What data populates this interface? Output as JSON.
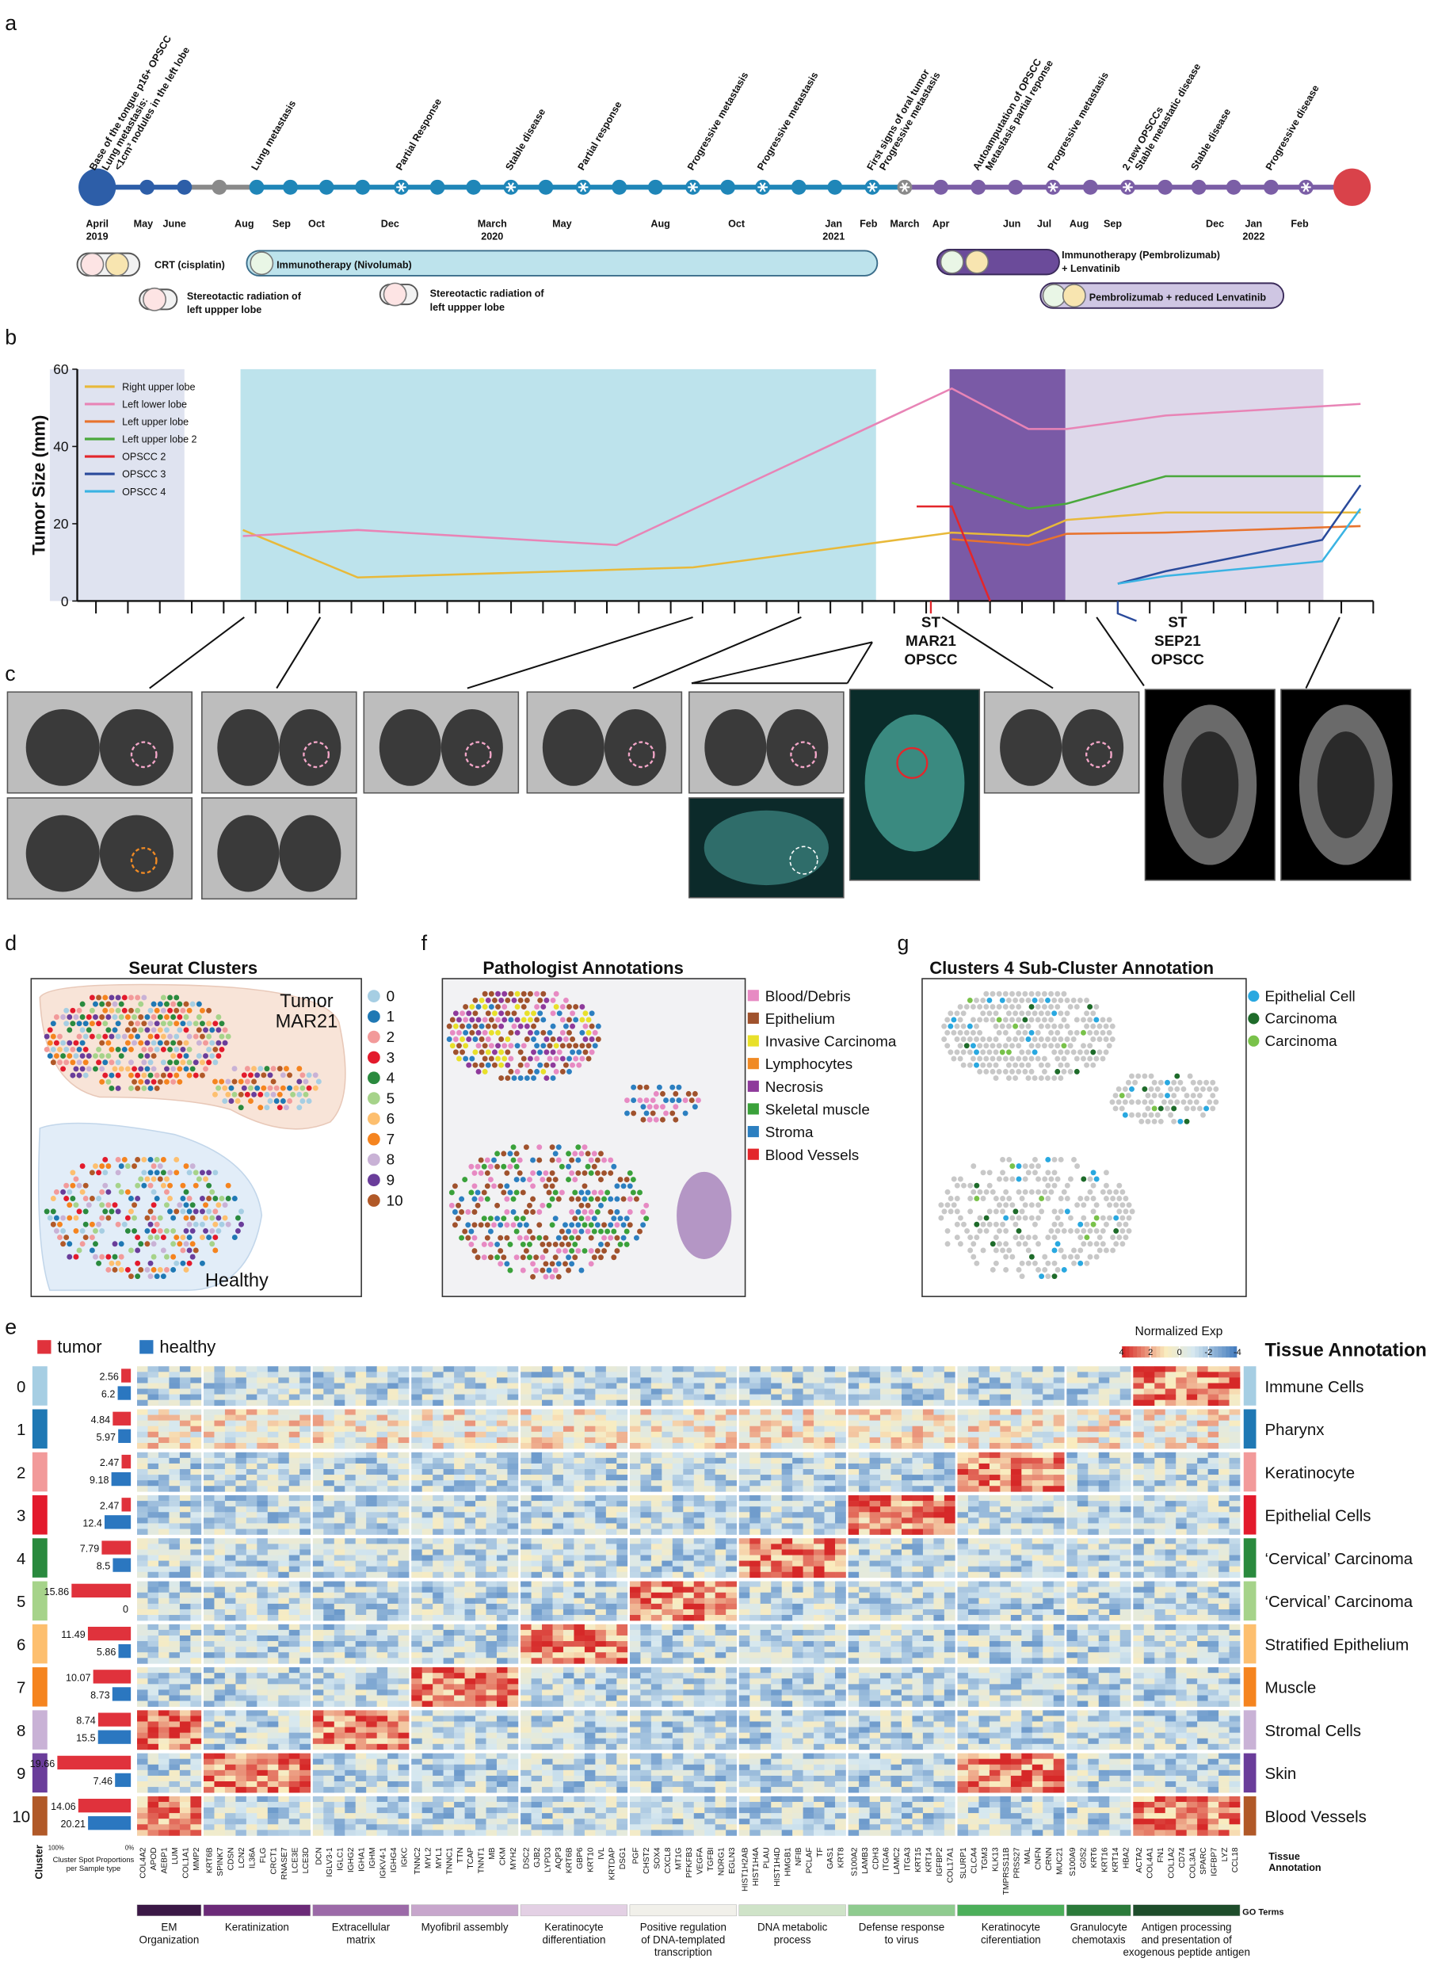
{
  "panel_labels": [
    "a",
    "b",
    "c",
    "d",
    "e",
    "f",
    "g"
  ],
  "timeline": {
    "events": [
      [
        "Base of the tongue p16+ OPSCC",
        "Lung metastasis:",
        "<1cm³ nodules in the left lobe"
      ],
      [
        "Lung metastasis"
      ],
      [
        "Partial Response"
      ],
      [
        "Stable disease"
      ],
      [
        "Partial response"
      ],
      [
        "Progressive metastasis"
      ],
      [
        "Progressive metastasis"
      ],
      [
        "First signs of oral tumor",
        "Progressive metastasis"
      ],
      [
        "Autoamputation of OPSCC",
        "Metastasis partial reponse"
      ],
      [
        "Progressive metastasis"
      ],
      [
        "2 new OPSCCs",
        "Stable metastatic disease"
      ],
      [
        "Stable disease"
      ],
      [
        "Progressive disease"
      ]
    ],
    "dates": [
      [
        "April",
        "2019"
      ],
      [
        "May"
      ],
      [
        "June"
      ],
      [
        "Aug"
      ],
      [
        "Sep"
      ],
      [
        "Oct"
      ],
      [
        "Dec"
      ],
      [
        "March",
        "2020"
      ],
      [
        "May"
      ],
      [
        "Aug"
      ],
      [
        "Oct"
      ],
      [
        "Jan",
        "2021"
      ],
      [
        "Feb"
      ],
      [
        "March"
      ],
      [
        "Apr"
      ],
      [
        "Jun"
      ],
      [
        "Jul"
      ],
      [
        "Aug"
      ],
      [
        "Sep"
      ],
      [
        "Dec"
      ],
      [
        "Jan",
        "2022"
      ],
      [
        "Feb"
      ]
    ],
    "treatments": {
      "crt": [
        "CRT (cisplatin)"
      ],
      "nivolumab": [
        "Immunotherapy (Nivolumab)"
      ],
      "radiation1": [
        "Stereotactic radiation of",
        "left uppper lobe"
      ],
      "radiation2": [
        "Stereotactic radiation of",
        "left uppper lobe"
      ],
      "pembro": [
        "Immunotherapy (Pembrolizumab)",
        "+ Lenvatinib"
      ],
      "pembro_reduced": [
        "Pembrolizumab + reduced Lenvatinib"
      ]
    }
  },
  "chart_data": {
    "type": "line",
    "y_label": "Tumor Size (mm)",
    "ylim": [
      0,
      60
    ],
    "yticks": [
      0,
      20,
      40,
      60
    ],
    "xlim": [
      0,
      40
    ],
    "xticks": [
      0,
      1,
      2,
      3,
      4,
      5,
      6,
      7,
      8,
      9,
      10,
      11,
      12,
      13,
      14,
      15,
      16,
      17,
      18,
      19,
      20,
      21,
      22,
      23,
      24,
      25,
      26,
      27,
      28,
      29,
      30,
      31,
      32,
      33,
      34,
      35,
      36,
      37,
      38,
      39,
      40
    ],
    "series": [
      {
        "name": "Right upper lobe",
        "color": "#e8b93a",
        "x": [
          4.6,
          8.2,
          18.7,
          26.8,
          29.2,
          30.4,
          33.5,
          39.6
        ],
        "values": [
          18.4,
          6.1,
          8.7,
          17.7,
          16.8,
          21,
          22.9,
          22.9
        ]
      },
      {
        "name": "Left lower lobe",
        "color": "#e884b6",
        "x": [
          4.6,
          8.2,
          16.3,
          26.8,
          29.2,
          30.4,
          33.5,
          39.6
        ],
        "values": [
          16.8,
          18.4,
          14.5,
          55,
          44.5,
          44.5,
          48,
          51
        ]
      },
      {
        "name": "Left upper lobe",
        "color": "#e8732e",
        "x": [
          26.8,
          29.2,
          30.4,
          33.5,
          39.6
        ],
        "values": [
          16,
          14.5,
          17.4,
          17.7,
          19.4
        ]
      },
      {
        "name": "Left upper lobe 2",
        "color": "#4aa83c",
        "x": [
          26.8,
          29.2,
          30.4,
          33.5,
          39.6
        ],
        "values": [
          30.6,
          23.9,
          25.2,
          32.3,
          32.3
        ]
      },
      {
        "name": "OPSCC 2",
        "color": "#e3262b",
        "x": [
          25.7,
          26.8,
          28
        ],
        "values": [
          24.5,
          24.5,
          0
        ]
      },
      {
        "name": "OPSCC 3",
        "color": "#2a4a9b",
        "x": [
          32,
          33.5,
          38.4,
          39.6
        ],
        "values": [
          4.5,
          7.7,
          15.8,
          30
        ]
      },
      {
        "name": "OPSCC 4",
        "color": "#3ab3e3",
        "x": [
          32,
          33.5,
          38.4,
          39.6
        ],
        "values": [
          4.5,
          6.5,
          10.3,
          23.9
        ]
      }
    ],
    "annotations": [
      [
        "ST",
        "MAR21",
        "OPSCC"
      ],
      [
        "ST",
        "SEP21",
        "OPSCC"
      ]
    ]
  },
  "spatial": {
    "d": {
      "title": "Seurat Clusters",
      "regions": [
        [
          "Tumor",
          "MAR21"
        ],
        [
          "Healthy"
        ]
      ],
      "legend": [
        {
          "label": "0",
          "color": "#a6cee3"
        },
        {
          "label": "1",
          "color": "#1f78b4"
        },
        {
          "label": "2",
          "color": "#f29a9a"
        },
        {
          "label": "3",
          "color": "#e31a2c"
        },
        {
          "label": "4",
          "color": "#2a8a3e"
        },
        {
          "label": "5",
          "color": "#a6d38a"
        },
        {
          "label": "6",
          "color": "#fdbf6f"
        },
        {
          "label": "7",
          "color": "#f5841f"
        },
        {
          "label": "8",
          "color": "#c9b2d6"
        },
        {
          "label": "9",
          "color": "#6a3d9a"
        },
        {
          "label": "10",
          "color": "#b15928"
        }
      ]
    },
    "f": {
      "title": "Pathologist Annotations",
      "legend": [
        {
          "label": "Blood/Debris",
          "color": "#e78ac3"
        },
        {
          "label": "Epithelium",
          "color": "#a0522d"
        },
        {
          "label": "Invasive Carcinoma",
          "color": "#e8e02a"
        },
        {
          "label": "Lymphocytes",
          "color": "#f08a24"
        },
        {
          "label": "Necrosis",
          "color": "#8e3a9b"
        },
        {
          "label": "Skeletal muscle",
          "color": "#3aa13a"
        },
        {
          "label": "Stroma",
          "color": "#2c7fc0"
        },
        {
          "label": "Blood Vessels",
          "color": "#e3262b"
        }
      ]
    },
    "g": {
      "title": "Clusters 4 Sub-Cluster Annotation",
      "legend": [
        {
          "label": "Epithelial Cell",
          "color": "#29a8e0"
        },
        {
          "label": "Carcinoma",
          "color": "#1e6b2a"
        },
        {
          "label": "Carcinoma",
          "color": "#79c24a"
        }
      ]
    }
  },
  "heatmap": {
    "sample_legend": [
      {
        "label": "tumor",
        "color": "#e0323c"
      },
      {
        "label": "healthy",
        "color": "#2b77c0"
      }
    ],
    "colorbar_title": "Normalized Exp",
    "colorbar_ticks": [
      4,
      2,
      0,
      -2,
      -4
    ],
    "annotation_title": "Tissue Annotation",
    "cluster_axis": "Cluster",
    "proportion_axis": [
      "100%",
      "0%"
    ],
    "proportion_title": [
      "Cluster Spot Proportions",
      "per Sample type"
    ],
    "tissue_axis": [
      "Tissue",
      "Annotation"
    ],
    "go_title": "GO Terms",
    "clusters": [
      {
        "label": "0",
        "color": "#a6cee3",
        "tumor": 2.56,
        "healthy": 6.2,
        "tissue": "Immune Cells"
      },
      {
        "label": "1",
        "color": "#1f78b4",
        "tumor": 4.84,
        "healthy": 5.97,
        "tissue": "Pharynx"
      },
      {
        "label": "2",
        "color": "#f29a9a",
        "tumor": 2.47,
        "healthy": 9.18,
        "tissue": "Keratinocyte"
      },
      {
        "label": "3",
        "color": "#e31a2c",
        "tumor": 2.47,
        "healthy": 12.4,
        "tissue": "Epithelial Cells"
      },
      {
        "label": "4",
        "color": "#2a8a3e",
        "tumor": 7.79,
        "healthy": 8.5,
        "tissue": "‘Cervical’ Carcinoma"
      },
      {
        "label": "5",
        "color": "#a6d38a",
        "tumor": 15.86,
        "healthy": 0,
        "tissue": "‘Cervical’ Carcinoma"
      },
      {
        "label": "6",
        "color": "#fdbf6f",
        "tumor": 11.49,
        "healthy": 5.86,
        "tissue": "Stratified Epithelium"
      },
      {
        "label": "7",
        "color": "#f5841f",
        "tumor": 10.07,
        "healthy": 8.73,
        "tissue": "Muscle"
      },
      {
        "label": "8",
        "color": "#c9b2d6",
        "tumor": 8.74,
        "healthy": 15.5,
        "tissue": "Stromal Cells"
      },
      {
        "label": "9",
        "color": "#6a3d9a",
        "tumor": 19.66,
        "healthy": 7.46,
        "tissue": "Skin"
      },
      {
        "label": "10",
        "color": "#b15928",
        "tumor": 14.06,
        "healthy": 20.21,
        "tissue": "Blood Vessels"
      }
    ],
    "gene_groups": [
      {
        "go_term": [
          "EM",
          "Organization"
        ],
        "color": "#3b1846",
        "genes": [
          "COL4A2",
          "APOD",
          "AEBP1",
          "LUM",
          "COL1A1",
          "MMP2"
        ]
      },
      {
        "go_term": [
          "Keratinization"
        ],
        "color": "#6b2a78",
        "genes": [
          "KRT6B",
          "SPINK7",
          "CDSN",
          "LCN2",
          "IL36A",
          "FLG",
          "CRCT1",
          "RNASE7",
          "LCE3E",
          "LCE3D"
        ]
      },
      {
        "go_term": [
          "Extracellular",
          "matrix"
        ],
        "color": "#9c6aa8",
        "genes": [
          "DCN",
          "IGLV3-1",
          "IGLC1",
          "IGHG2",
          "IGHA1",
          "IGHM",
          "IGKV4-1",
          "IGHG4",
          "IGKC"
        ]
      },
      {
        "go_term": [
          "Myofibril assembly"
        ],
        "color": "#c7a6cc",
        "genes": [
          "TNNC2",
          "MYL2",
          "MYL1",
          "TNNC1",
          "TTN",
          "TCAP",
          "TNNT1",
          "MB",
          "CKM",
          "MYH2"
        ]
      },
      {
        "go_term": [
          "Keratinocyte",
          "differentiation"
        ],
        "color": "#e3d0e4",
        "genes": [
          "DSC2",
          "GJB2",
          "LYPD3",
          "AQP3",
          "KRT6B",
          "GBP6",
          "KRT10",
          "IVL",
          "KRTDAP",
          "DSG1"
        ]
      },
      {
        "go_term": [
          "Positive regulation",
          "of DNA-templated",
          "transcription"
        ],
        "color": "#f1f0ea",
        "genes": [
          "PGF",
          "CHST2",
          "SOX4",
          "CXCL8",
          "MT1G",
          "PFKFB3",
          "VEGFA",
          "TGFBI",
          "NDRG1",
          "EGLN3"
        ]
      },
      {
        "go_term": [
          "DNA metabolic",
          "process"
        ],
        "color": "#cfe3c8",
        "genes": [
          "HIST1H2AB",
          "HIST1H4A",
          "PLAU",
          "HIST1H4D",
          "HMGB1",
          "NFIB",
          "PCLAF",
          "TF",
          "GAS1",
          "KRT8"
        ]
      },
      {
        "go_term": [
          "Defense response",
          "to virus"
        ],
        "color": "#8fcb8f",
        "genes": [
          "S100A2",
          "LAMB3",
          "CDH3",
          "ITGA6",
          "LAMC2",
          "ITGA3",
          "KRT15",
          "KRT14",
          "IGFBP2",
          "COL17A1"
        ]
      },
      {
        "go_term": [
          "Keratinocyte",
          "ciferentiation"
        ],
        "color": "#4caf5a",
        "genes": [
          "SLURP1",
          "CLCA4",
          "TGM3",
          "KLK13",
          "TMPRSS11B",
          "PRSS27",
          "MAL",
          "CNFN",
          "CRNN",
          "MUC21"
        ]
      },
      {
        "go_term": [
          "Granulocyte",
          "chemotaxis"
        ],
        "color": "#2b7a3a",
        "genes": [
          "S100A9",
          "G0S2",
          "KRT6",
          "KRT16",
          "KRT14",
          "HBA2"
        ]
      },
      {
        "go_term": [
          "Antigen processing",
          "and presentation of",
          "exogenous peptide antigen"
        ],
        "color": "#1e4d2b",
        "genes": [
          "ACTA2",
          "COL4A1",
          "FN1",
          "COL1A2",
          "CD74",
          "COL3A1",
          "SPARC",
          "IGFBP7",
          "LYZ",
          "CCL18"
        ]
      }
    ]
  }
}
